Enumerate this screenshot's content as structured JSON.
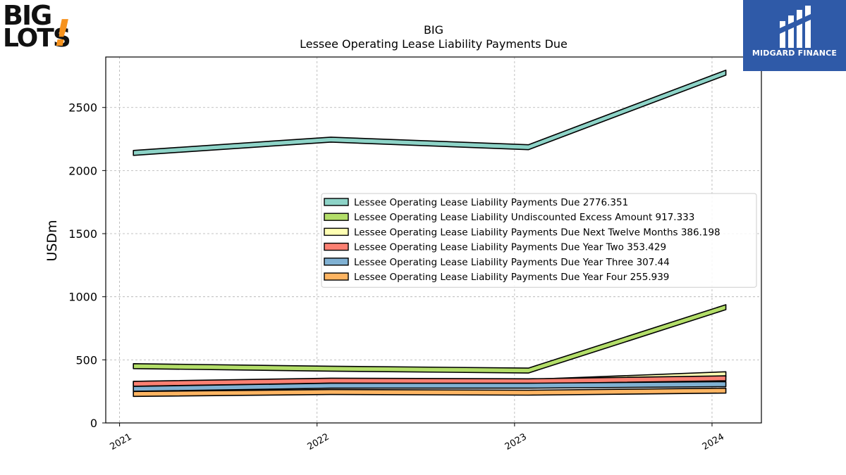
{
  "logos": {
    "left": {
      "text_line1": "BIG",
      "text_line2": "LOTS",
      "mark": "!",
      "accent": "#f7931e"
    },
    "right": {
      "text": "MIDGARD FINANCE",
      "background": "#2f5aa8"
    }
  },
  "chart_data": {
    "type": "area",
    "title": "BIG",
    "subtitle": "Lessee Operating Lease Liability Payments Due",
    "xlabel": "",
    "ylabel": "USDm",
    "x": [
      "2021",
      "2022",
      "2023",
      "2024"
    ],
    "xlim": [
      2020.93,
      2024.25
    ],
    "ylim": [
      0,
      2900
    ],
    "yticks": [
      0,
      500,
      1000,
      1500,
      2000,
      2500
    ],
    "grid": true,
    "legend_position": "center-right",
    "series": [
      {
        "name": "Lessee Operating Lease Liability Payments Due",
        "legend_value": "2776.351",
        "values": [
          2140,
          2245,
          2185,
          2776.351
        ],
        "color": "#8dd3c7"
      },
      {
        "name": "Lessee Operating Lease Liability Undiscounted Excess Amount",
        "legend_value": "917.333",
        "values": [
          450,
          430,
          415,
          917.333
        ],
        "color": "#b3de69"
      },
      {
        "name": "Lessee Operating Lease Liability Payments Due Next Twelve Months",
        "legend_value": "386.198",
        "values": [
          310,
          325,
          325,
          386.198
        ],
        "color": "#ffffb3"
      },
      {
        "name": "Lessee Operating Lease Liability Payments Due Year Two",
        "legend_value": "353.429",
        "values": [
          310,
          335,
          330,
          353.429
        ],
        "color": "#fb8072"
      },
      {
        "name": "Lessee Operating Lease Liability Payments Due Year Three",
        "legend_value": "307.44",
        "values": [
          270,
          295,
          295,
          307.44
        ],
        "color": "#80b1d3"
      },
      {
        "name": "Lessee Operating Lease Liability Payments Due Year Four",
        "legend_value": "255.939",
        "values": [
          230,
          245,
          240,
          255.939
        ],
        "color": "#fdb462"
      }
    ]
  }
}
